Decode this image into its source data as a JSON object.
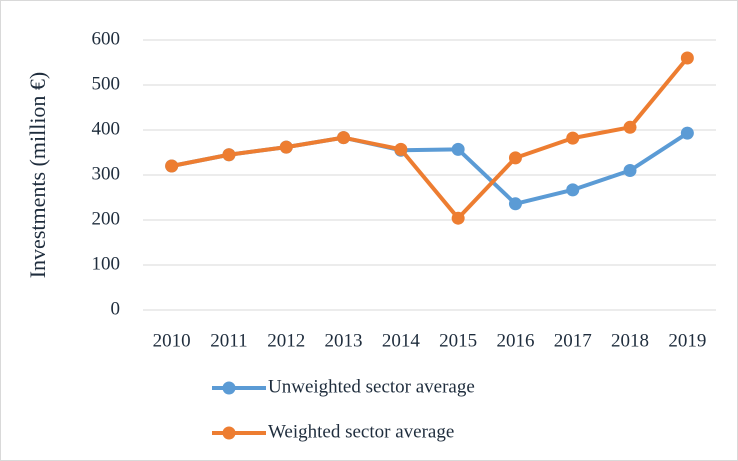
{
  "chart_data": {
    "type": "line",
    "y_label": "Investments (million €)",
    "categories": [
      "2010",
      "2011",
      "2012",
      "2013",
      "2014",
      "2015",
      "2016",
      "2017",
      "2018",
      "2019"
    ],
    "series": [
      {
        "name": "Unweighted sector average",
        "color": "#5b9bd5",
        "values": [
          320,
          345,
          362,
          383,
          355,
          357,
          236,
          267,
          310,
          393
        ]
      },
      {
        "name": "Weighted sector average",
        "color": "#ed7d31",
        "values": [
          320,
          345,
          362,
          383,
          357,
          204,
          338,
          382,
          406,
          560
        ]
      }
    ],
    "ylim": [
      0,
      600
    ],
    "yticks": [
      0,
      100,
      200,
      300,
      400,
      500,
      600
    ],
    "grid": true,
    "legend": "bottom"
  }
}
